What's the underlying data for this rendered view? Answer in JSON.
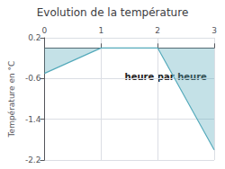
{
  "chart_data": {
    "type": "area",
    "title": "Evolution de la température",
    "ylabel": "Température en °C",
    "annotation": "heure par heure",
    "x": [
      0,
      1,
      2,
      3
    ],
    "values": [
      -0.5,
      0.0,
      0.0,
      -2.0
    ],
    "color": "#55aabb",
    "xlim": [
      0,
      3
    ],
    "xticks": [
      0,
      1,
      2,
      3
    ],
    "ylim": [
      -2.2,
      0.2
    ],
    "yticks": [
      0.2,
      -0.6,
      -1.4,
      -2.2
    ],
    "grid": true
  }
}
